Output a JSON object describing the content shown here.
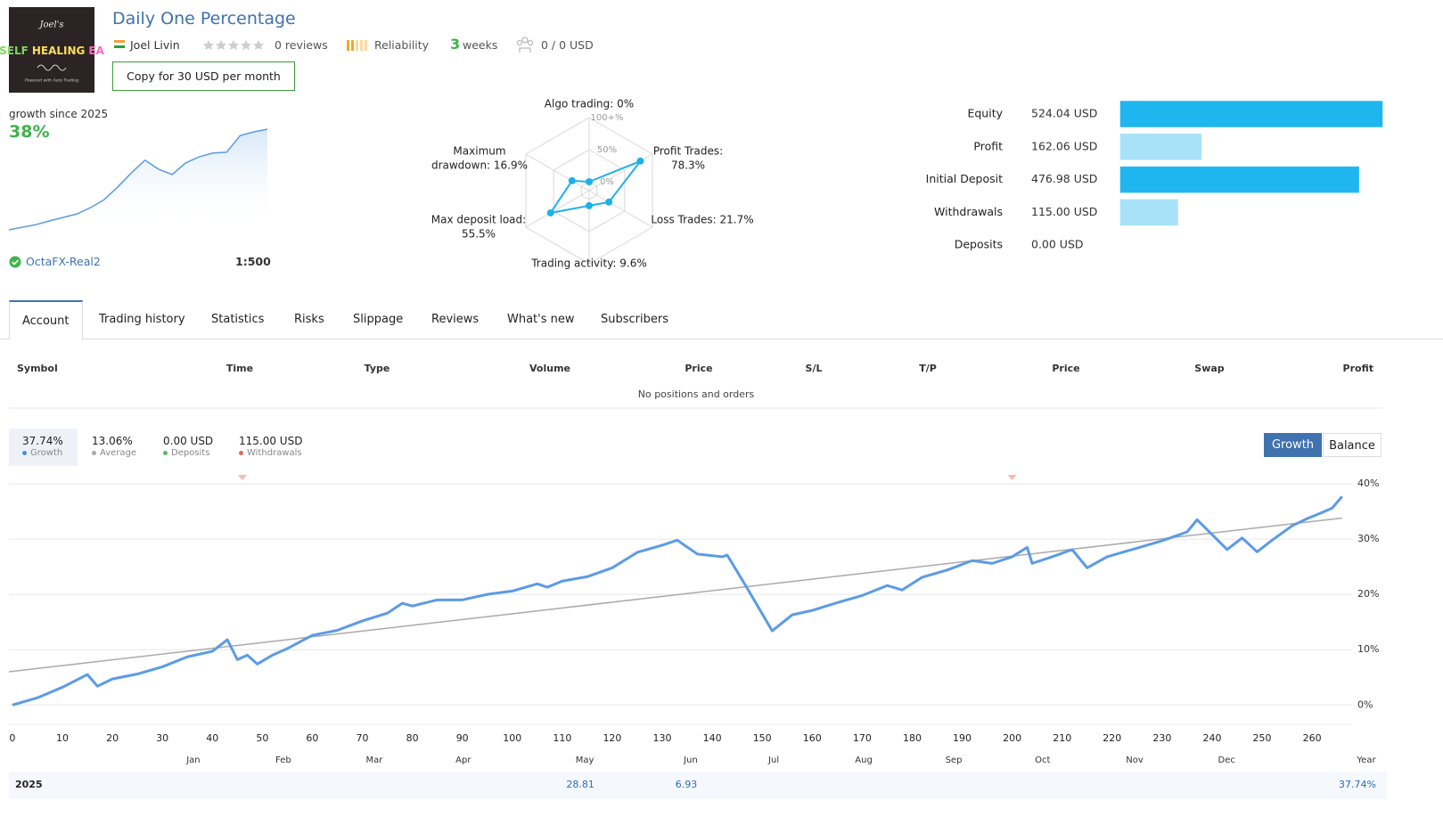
{
  "header": {
    "logo": {
      "line1": "Joel's",
      "words": [
        "SELF",
        "HEALING",
        "EA"
      ],
      "word_colors": [
        "#7ed957",
        "#ffde59",
        "#ff66c4"
      ],
      "line3": "Powered with Auto Trading"
    },
    "title": "Daily One Percentage",
    "author": "Joel Livin",
    "reviews": "0 reviews",
    "reliability": "Reliability",
    "weeks": {
      "number": "3",
      "unit": "weeks"
    },
    "subscribers": "0 / 0 USD",
    "copy_button": "Copy for 30 USD per month"
  },
  "mini_chart": {
    "type": "line",
    "title": "growth since 2025",
    "headline": "38%",
    "color": "#5b9be6",
    "values": [
      0,
      1,
      2,
      3.4,
      4.7,
      6,
      8.4,
      11.4,
      16.2,
      21.5,
      26.3,
      22.9,
      20.9,
      25.3,
      27.6,
      29,
      29.3,
      35.6,
      37,
      38
    ],
    "broker": "OctaFX-Real2",
    "leverage": "1:500"
  },
  "radar": {
    "type": "radar",
    "labels": [
      [
        "Algo trading: 0%"
      ],
      [
        "Profit Trades:",
        "78.3%"
      ],
      [
        "Loss Trades: 21.7%"
      ],
      [
        "Trading activity: 9.6%"
      ],
      [
        "Max deposit load:",
        "55.5%"
      ],
      [
        "Maximum",
        "drawdown: 16.9%"
      ]
    ],
    "values": [
      0,
      78.3,
      21.7,
      9.6,
      55.5,
      16.9
    ],
    "rticks": [
      {
        "value": 0,
        "label": "0%"
      },
      {
        "value": 50,
        "label": "50%"
      },
      {
        "value": 100,
        "label": "100+%"
      }
    ],
    "color": "#1fb0e8"
  },
  "balance_bars": {
    "type": "bar",
    "orientation": "horizontal",
    "categories": [
      "Equity",
      "Profit",
      "Initial Deposit",
      "Withdrawals",
      "Deposits"
    ],
    "values": [
      524.04,
      162.06,
      476.98,
      115,
      0
    ],
    "value_labels": [
      "524.04 USD",
      "162.06 USD",
      "476.98 USD",
      "115.00 USD",
      "0.00 USD"
    ],
    "colors": [
      "#1fb6f0",
      "#a8e2f8",
      "#1fb6f0",
      "#a8e2f8",
      "#a8e2f8"
    ]
  },
  "tabs": {
    "items": [
      "Account",
      "Trading history",
      "Statistics",
      "Risks",
      "Slippage",
      "Reviews",
      "What's new",
      "Subscribers"
    ],
    "active": 0
  },
  "positions_table": {
    "columns": [
      "Symbol",
      "Time",
      "Type",
      "Volume",
      "Price",
      "S/L",
      "T/P",
      "Price",
      "Swap",
      "Profit"
    ],
    "empty_message": "No positions and orders"
  },
  "growth": {
    "summary": [
      {
        "value": "37.74%",
        "label": "Growth",
        "color": "#4a90e2"
      },
      {
        "value": "13.06%",
        "label": "Average",
        "color": "#aaaaaa"
      },
      {
        "value": "0.00 USD",
        "label": "Deposits",
        "color": "#5cb85c"
      },
      {
        "value": "115.00 USD",
        "label": "Withdrawals",
        "color": "#e8694a"
      }
    ],
    "buttons": [
      "Growth",
      "Balance"
    ],
    "active_button": 0,
    "chart": {
      "type": "line",
      "x": [
        0,
        5,
        10,
        15,
        17,
        20,
        25,
        30,
        35,
        40,
        43,
        45,
        47,
        49,
        52,
        55,
        60,
        65,
        70,
        75,
        78,
        80,
        85,
        90,
        95,
        100,
        105,
        107,
        110,
        115,
        120,
        125,
        130,
        133,
        137,
        142,
        143,
        147,
        152,
        156,
        160,
        165,
        170,
        175,
        178,
        182,
        187,
        192,
        196,
        200,
        203,
        204,
        208,
        212,
        215,
        219,
        224,
        230,
        235,
        237,
        240,
        243,
        246,
        249,
        252,
        256,
        259,
        262,
        264,
        266
      ],
      "values": [
        0,
        1.3,
        3.2,
        5.5,
        3.4,
        4.7,
        5.6,
        6.9,
        8.7,
        9.7,
        11.8,
        8.2,
        9,
        7.4,
        9,
        10.2,
        12.6,
        13.5,
        15.2,
        16.6,
        18.4,
        17.9,
        19,
        19,
        20,
        20.6,
        21.9,
        21.3,
        22.4,
        23.2,
        24.8,
        27.6,
        28.9,
        29.8,
        27.3,
        26.8,
        27.1,
        21.1,
        13.4,
        16.3,
        17.1,
        18.5,
        19.8,
        21.6,
        20.8,
        23.1,
        24.4,
        26.1,
        25.6,
        26.8,
        28.5,
        25.6,
        26.8,
        28.1,
        24.8,
        26.8,
        28.1,
        29.7,
        31.3,
        33.5,
        30.8,
        28.1,
        30.2,
        27.7,
        29.8,
        32.4,
        33.7,
        34.8,
        35.6,
        37.7
      ],
      "color": "#5b9be6",
      "trend": {
        "x": [
          -0.7,
          266
        ],
        "values": [
          6,
          33.8
        ],
        "color": "#aaaaaa"
      },
      "withdrawals": {
        "x": [
          46,
          200
        ],
        "color": "#f6b9aa"
      },
      "xlim": [
        -0.7,
        268
      ],
      "ylim": [
        -3.5,
        40
      ],
      "xticks": [
        0,
        10,
        20,
        30,
        40,
        50,
        60,
        70,
        80,
        90,
        100,
        110,
        120,
        130,
        140,
        150,
        160,
        170,
        180,
        190,
        200,
        210,
        220,
        230,
        240,
        250,
        260
      ],
      "yticks": [
        {
          "value": 0,
          "label": "0%"
        },
        {
          "value": 10,
          "label": "10%"
        },
        {
          "value": 20,
          "label": "20%"
        },
        {
          "value": 30,
          "label": "30%"
        },
        {
          "value": 40,
          "label": "40%"
        }
      ],
      "months": [
        {
          "value": 36.2,
          "label": "Jan"
        },
        {
          "value": 54.2,
          "label": "Feb"
        },
        {
          "value": 72.4,
          "label": "Mar"
        },
        {
          "value": 90.2,
          "label": "Apr"
        },
        {
          "value": 114.5,
          "label": "May"
        },
        {
          "value": 135.7,
          "label": "Jun"
        },
        {
          "value": 152.3,
          "label": "Jul"
        },
        {
          "value": 170.3,
          "label": "Aug"
        },
        {
          "value": 188.3,
          "label": "Sep"
        },
        {
          "value": 206.1,
          "label": "Oct"
        },
        {
          "value": 224.5,
          "label": "Nov"
        },
        {
          "value": 242.9,
          "label": "Dec"
        }
      ],
      "year_label": "Year",
      "grid": true
    },
    "year_row": {
      "year": "2025",
      "month_values": [
        null,
        null,
        null,
        null,
        28.81,
        6.93,
        null,
        null,
        null,
        null,
        null,
        null
      ],
      "total": "37.74%"
    }
  }
}
